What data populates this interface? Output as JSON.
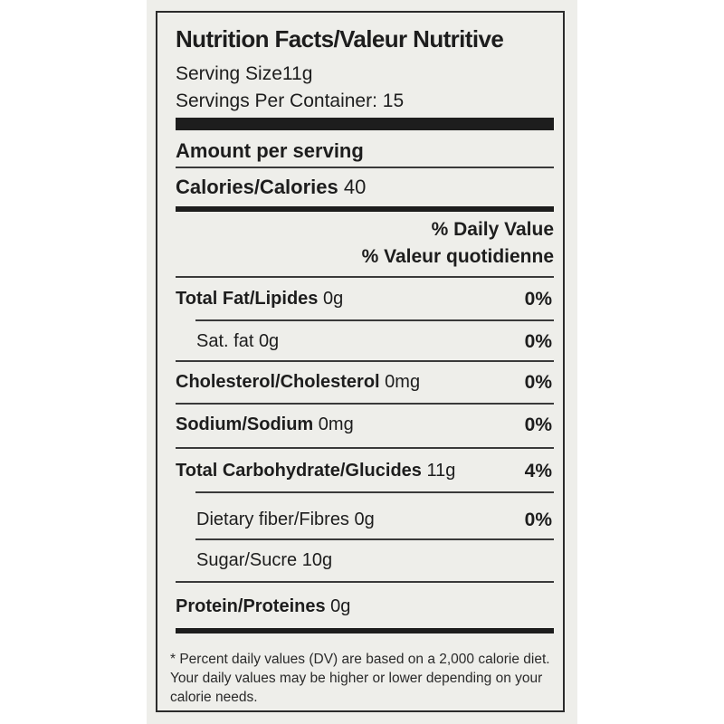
{
  "label": {
    "title": "Nutrition Facts/Valeur Nutritive",
    "serving_size": "Serving Size11g",
    "servings_per_container": "Servings Per Container: 15",
    "amount_per_serving": "Amount per serving",
    "calories_label": "Calories/Calories",
    "calories_value": "40",
    "dv_heading_en": "% Daily Value",
    "dv_heading_fr": "% Valeur quotidienne",
    "nutrients": [
      {
        "label": "Total Fat/Lipides",
        "amount": "0g",
        "dv": "0%"
      },
      {
        "label": "Sat. fat",
        "amount": "0g",
        "dv": "0%"
      },
      {
        "label": "Cholesterol/Cholesterol",
        "amount": "0mg",
        "dv": "0%"
      },
      {
        "label": "Sodium/Sodium",
        "amount": "0mg",
        "dv": "0%"
      },
      {
        "label": "Total Carbohydrate/Glucides",
        "amount": "11g",
        "dv": "4%"
      },
      {
        "label": "Dietary fiber/Fibres",
        "amount": "0g",
        "dv": "0%"
      },
      {
        "label": "Sugar/Sucre",
        "amount": "10g",
        "dv": ""
      },
      {
        "label": "Protein/Proteines",
        "amount": "0g",
        "dv": ""
      }
    ],
    "footnote": "* Percent daily values (DV) are based on a 2,000 calorie diet. Your daily values may be higher or lower depending on your calorie needs."
  }
}
